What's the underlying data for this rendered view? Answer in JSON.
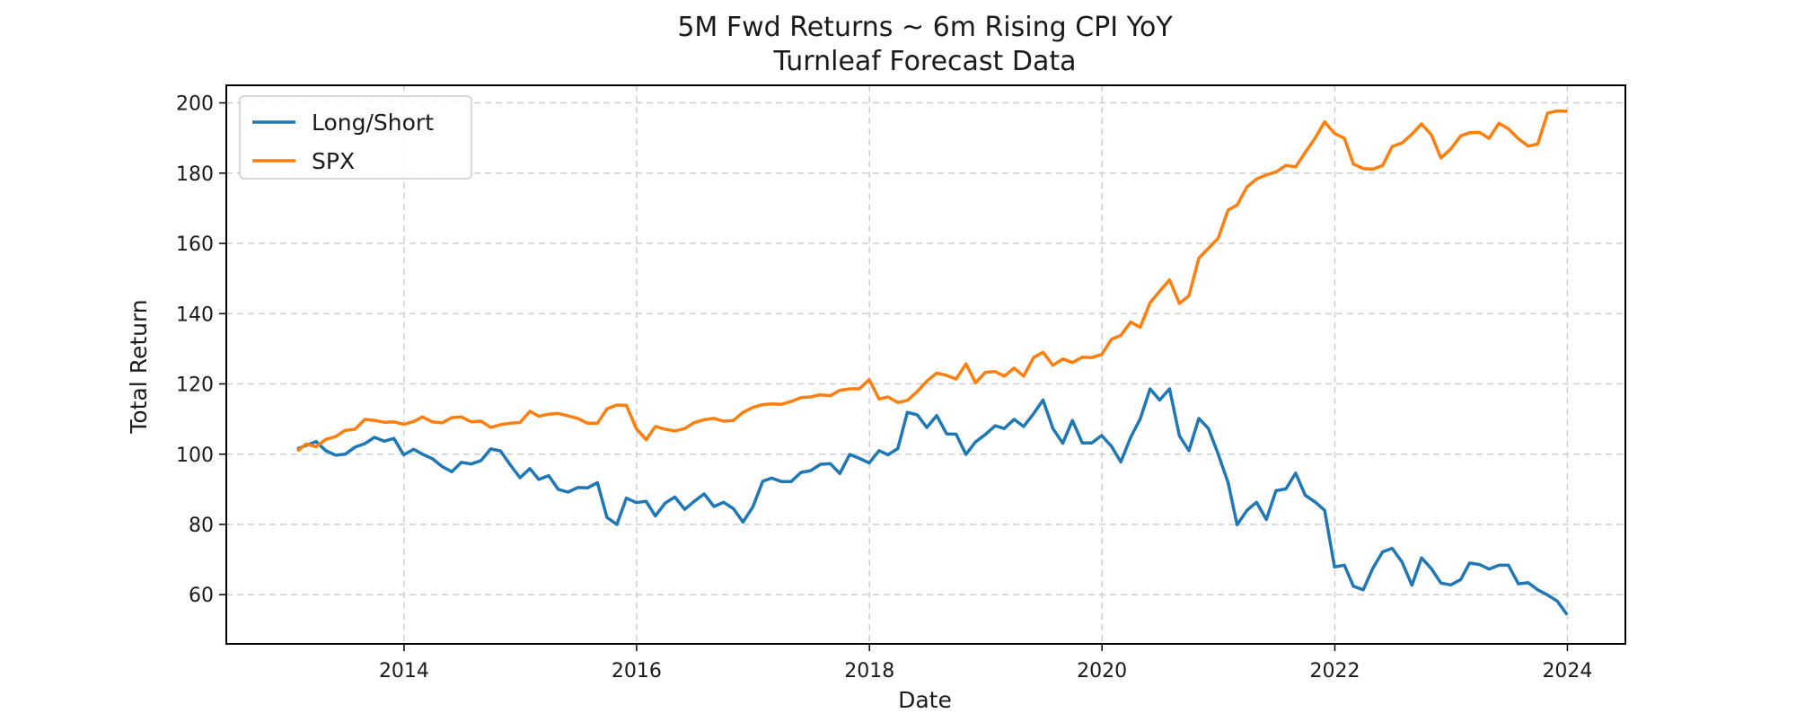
{
  "chart_data": {
    "type": "line",
    "title": "5M Fwd Returns ~ 6m Rising CPI YoY",
    "subtitle": "Turnleaf Forecast Data",
    "xlabel": "Date",
    "ylabel": "Total Return",
    "xlim": [
      "2012-06-22",
      "2024-07-01"
    ],
    "ylim": [
      46,
      205
    ],
    "xticks": [
      "2014",
      "2016",
      "2018",
      "2020",
      "2022",
      "2024"
    ],
    "yticks": [
      60,
      80,
      100,
      120,
      140,
      160,
      180,
      200
    ],
    "grid": true,
    "legend_position": "top-left",
    "series": [
      {
        "name": "Long/Short",
        "color": "#1f77b4",
        "x": [
          "2013-01-31",
          "2013-02-28",
          "2013-03-31",
          "2013-04-30",
          "2013-05-31",
          "2013-06-30",
          "2013-07-31",
          "2013-08-31",
          "2013-09-30",
          "2013-10-31",
          "2013-11-30",
          "2013-12-31",
          "2014-01-31",
          "2014-02-28",
          "2014-03-31",
          "2014-04-30",
          "2014-05-31",
          "2014-06-30",
          "2014-07-31",
          "2014-08-31",
          "2014-09-30",
          "2014-10-31",
          "2014-11-30",
          "2014-12-31",
          "2015-01-31",
          "2015-02-28",
          "2015-03-31",
          "2015-04-30",
          "2015-05-31",
          "2015-06-30",
          "2015-07-31",
          "2015-08-31",
          "2015-09-30",
          "2015-10-31",
          "2015-11-30",
          "2015-12-31",
          "2016-01-31",
          "2016-02-29",
          "2016-03-31",
          "2016-04-30",
          "2016-05-31",
          "2016-06-30",
          "2016-07-31",
          "2016-08-31",
          "2016-09-30",
          "2016-10-31",
          "2016-11-30",
          "2016-12-31",
          "2017-01-31",
          "2017-02-28",
          "2017-03-31",
          "2017-04-30",
          "2017-05-31",
          "2017-06-30",
          "2017-07-31",
          "2017-08-31",
          "2017-09-30",
          "2017-10-31",
          "2017-11-30",
          "2017-12-31",
          "2018-01-31",
          "2018-02-28",
          "2018-03-31",
          "2018-04-30",
          "2018-05-31",
          "2018-06-30",
          "2018-07-31",
          "2018-08-31",
          "2018-09-30",
          "2018-10-31",
          "2018-11-30",
          "2018-12-31",
          "2019-01-31",
          "2019-02-28",
          "2019-03-31",
          "2019-04-30",
          "2019-05-31",
          "2019-06-30",
          "2019-07-31",
          "2019-08-31",
          "2019-09-30",
          "2019-10-31",
          "2019-11-30",
          "2019-12-31",
          "2020-01-31",
          "2020-02-29",
          "2020-03-31",
          "2020-04-30",
          "2020-05-31",
          "2020-06-30",
          "2020-07-31",
          "2020-08-31",
          "2020-09-30",
          "2020-10-31",
          "2020-11-30",
          "2020-12-31",
          "2021-01-31",
          "2021-02-28",
          "2021-03-31",
          "2021-04-30",
          "2021-05-31",
          "2021-06-30",
          "2021-07-31",
          "2021-08-31",
          "2021-09-30",
          "2021-10-31",
          "2021-11-30",
          "2021-12-31",
          "2022-01-31",
          "2022-02-28",
          "2022-03-31",
          "2022-04-30",
          "2022-05-31",
          "2022-06-30",
          "2022-07-31",
          "2022-08-31",
          "2022-09-30",
          "2022-10-31",
          "2022-11-30",
          "2022-12-31",
          "2023-01-31",
          "2023-02-28",
          "2023-03-31",
          "2023-04-30",
          "2023-05-31",
          "2023-06-30",
          "2023-07-31",
          "2023-08-31",
          "2023-09-30",
          "2023-10-31",
          "2023-11-30",
          "2023-12-31"
        ],
        "values": [
          101.5,
          102.5,
          103.6,
          101,
          99.7,
          100,
          102,
          103,
          104.8,
          103.7,
          104.5,
          99.8,
          101.4,
          100,
          98.7,
          96.5,
          95,
          97.7,
          97.2,
          98.2,
          101.5,
          100.9,
          97,
          93.3,
          95.9,
          92.8,
          93.9,
          90,
          89.2,
          90.5,
          90.4,
          91.9,
          82,
          80,
          87.5,
          86.2,
          86.6,
          82.4,
          86.1,
          87.8,
          84.3,
          86.6,
          88.7,
          85.1,
          86.3,
          84.5,
          80.7,
          85,
          92.3,
          93.2,
          92.2,
          92.2,
          94.8,
          95.3,
          97.1,
          97.3,
          94.5,
          99.9,
          98.8,
          97.5,
          101,
          99.8,
          101.6,
          111.9,
          111.2,
          107.6,
          111,
          105.8,
          105.7,
          99.9,
          103.5,
          105.6,
          108.1,
          107.3,
          109.9,
          107.9,
          111.5,
          115.4,
          107.3,
          103.1,
          109.6,
          103.2,
          103.2,
          105.3,
          102.2,
          97.8,
          104.8,
          110,
          118.6,
          115.4,
          118.6,
          105.2,
          101,
          110.2,
          107.3,
          100,
          91.9,
          79.9,
          84,
          86.3,
          81.4,
          89.6,
          90.1,
          94.6,
          88.3,
          86.4,
          84,
          67.9,
          68.4,
          62.4,
          61.4,
          67.5,
          72.2,
          73.2,
          69.3,
          62.7,
          70.5,
          67.4,
          63.3,
          62.8,
          64.3,
          69,
          68.6,
          67.3,
          68.4,
          68.4,
          63.1,
          63.4,
          61.4,
          59.9,
          58.2,
          54.3
        ]
      },
      {
        "name": "SPX",
        "color": "#ff7f0e",
        "x": [
          "2013-01-31",
          "2013-02-28",
          "2013-03-31",
          "2013-04-30",
          "2013-05-31",
          "2013-06-30",
          "2013-07-31",
          "2013-08-31",
          "2013-09-30",
          "2013-10-31",
          "2013-11-30",
          "2013-12-31",
          "2014-01-31",
          "2014-02-28",
          "2014-03-31",
          "2014-04-30",
          "2014-05-31",
          "2014-06-30",
          "2014-07-31",
          "2014-08-31",
          "2014-09-30",
          "2014-10-31",
          "2014-11-30",
          "2014-12-31",
          "2015-01-31",
          "2015-02-28",
          "2015-03-31",
          "2015-04-30",
          "2015-05-31",
          "2015-06-30",
          "2015-07-31",
          "2015-08-31",
          "2015-09-30",
          "2015-10-31",
          "2015-11-30",
          "2015-12-31",
          "2016-01-31",
          "2016-02-29",
          "2016-03-31",
          "2016-04-30",
          "2016-05-31",
          "2016-06-30",
          "2016-07-31",
          "2016-08-31",
          "2016-09-30",
          "2016-10-31",
          "2016-11-30",
          "2016-12-31",
          "2017-01-31",
          "2017-02-28",
          "2017-03-31",
          "2017-04-30",
          "2017-05-31",
          "2017-06-30",
          "2017-07-31",
          "2017-08-31",
          "2017-09-30",
          "2017-10-31",
          "2017-11-30",
          "2017-12-31",
          "2018-01-31",
          "2018-02-28",
          "2018-03-31",
          "2018-04-30",
          "2018-05-31",
          "2018-06-30",
          "2018-07-31",
          "2018-08-31",
          "2018-09-30",
          "2018-10-31",
          "2018-11-30",
          "2018-12-31",
          "2019-01-31",
          "2019-02-28",
          "2019-03-31",
          "2019-04-30",
          "2019-05-31",
          "2019-06-30",
          "2019-07-31",
          "2019-08-31",
          "2019-09-30",
          "2019-10-31",
          "2019-11-30",
          "2019-12-31",
          "2020-01-31",
          "2020-02-29",
          "2020-03-31",
          "2020-04-30",
          "2020-05-31",
          "2020-06-30",
          "2020-07-31",
          "2020-08-31",
          "2020-09-30",
          "2020-10-31",
          "2020-11-30",
          "2020-12-31",
          "2021-01-31",
          "2021-02-28",
          "2021-03-31",
          "2021-04-30",
          "2021-05-31",
          "2021-06-30",
          "2021-07-31",
          "2021-08-31",
          "2021-09-30",
          "2021-10-31",
          "2021-11-30",
          "2021-12-31",
          "2022-01-31",
          "2022-02-28",
          "2022-03-31",
          "2022-04-30",
          "2022-05-31",
          "2022-06-30",
          "2022-07-31",
          "2022-08-31",
          "2022-09-30",
          "2022-10-31",
          "2022-11-30",
          "2022-12-31",
          "2023-01-31",
          "2023-02-28",
          "2023-03-31",
          "2023-04-30",
          "2023-05-31",
          "2023-06-30",
          "2023-07-31",
          "2023-08-31",
          "2023-09-30",
          "2023-10-31",
          "2023-11-30",
          "2023-12-31"
        ],
        "values": [
          100.9,
          102.9,
          102.1,
          104.2,
          105,
          106.8,
          107.1,
          109.9,
          109.6,
          109.1,
          109.2,
          108.5,
          109.3,
          110.6,
          109.2,
          108.9,
          110.4,
          110.6,
          109.2,
          109.4,
          107.6,
          108.4,
          108.8,
          109,
          112.2,
          110.8,
          111.4,
          111.6,
          110.9,
          110.2,
          108.8,
          108.8,
          112.9,
          114,
          113.9,
          107.3,
          104.1,
          107.9,
          107.1,
          106.6,
          107.3,
          109,
          109.8,
          110.2,
          109.4,
          109.6,
          111.9,
          113.3,
          114.1,
          114.3,
          114.2,
          115,
          116.1,
          116.3,
          116.9,
          116.6,
          118.2,
          118.6,
          118.6,
          121.2,
          115.7,
          116.3,
          114.7,
          115.3,
          117.8,
          120.8,
          123.1,
          122.4,
          121.4,
          125.7,
          120.3,
          123.3,
          123.5,
          122.2,
          124.5,
          122.2,
          127.5,
          129,
          125.3,
          127.1,
          126.1,
          127.6,
          127.5,
          128.4,
          132.7,
          133.8,
          137.6,
          136.1,
          143.1,
          146.4,
          149.6,
          142.9,
          145.1,
          155.8,
          158.6,
          161.5,
          169.5,
          170.9,
          176.1,
          178.3,
          179.5,
          180.3,
          182.2,
          181.8,
          185.9,
          190,
          194.6,
          191.3,
          189.9,
          182.6,
          181.3,
          181.1,
          182.2,
          187.6,
          188.6,
          191.1,
          194,
          190.9,
          184.3,
          186.9,
          190.6,
          191.5,
          191.6,
          189.9,
          194.2,
          192.6,
          189.8,
          187.7,
          188.3,
          197.1,
          197.7,
          197.6
        ]
      }
    ]
  }
}
